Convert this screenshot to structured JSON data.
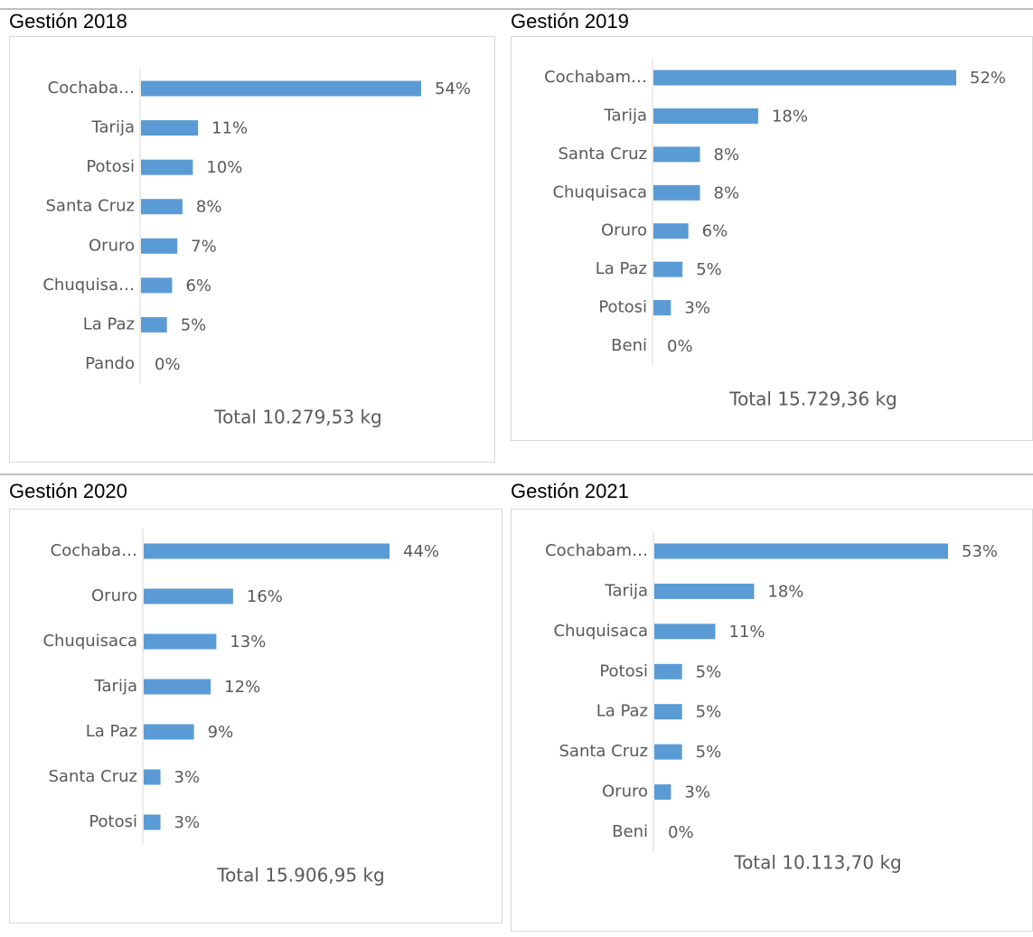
{
  "chart_data": [
    {
      "type": "bar",
      "orientation": "horizontal",
      "title": "Gestión 2018",
      "color": "#5b9bd5",
      "categories": [
        "Cochaba…",
        "Tarija",
        "Potosi",
        "Santa Cruz",
        "Oruro",
        "Chuquisa…",
        "La Paz",
        "Pando"
      ],
      "values": [
        54,
        11,
        10,
        8,
        7,
        6,
        5,
        0
      ],
      "value_labels": [
        "54%",
        "11%",
        "10%",
        "8%",
        "7%",
        "6%",
        "5%",
        "0%"
      ],
      "annotation": "Total 10.279,53 kg"
    },
    {
      "type": "bar",
      "orientation": "horizontal",
      "title": "Gestión 2019",
      "color": "#5b9bd5",
      "categories": [
        "Cochabam…",
        "Tarija",
        "Santa Cruz",
        "Chuquisaca",
        "Oruro",
        "La Paz",
        "Potosi",
        "Beni"
      ],
      "values": [
        52,
        18,
        8,
        8,
        6,
        5,
        3,
        0
      ],
      "value_labels": [
        "52%",
        "18%",
        "8%",
        "8%",
        "6%",
        "5%",
        "3%",
        "0%"
      ],
      "annotation": "Total 15.729,36 kg"
    },
    {
      "type": "bar",
      "orientation": "horizontal",
      "title": "Gestión 2020",
      "color": "#5b9bd5",
      "categories": [
        "Cochaba…",
        "Oruro",
        "Chuquisaca",
        "Tarija",
        "La Paz",
        "Santa Cruz",
        "Potosi"
      ],
      "values": [
        44,
        16,
        13,
        12,
        9,
        3,
        3
      ],
      "value_labels": [
        "44%",
        "16%",
        "13%",
        "12%",
        "9%",
        "3%",
        "3%"
      ],
      "annotation": "Total 15.906,95 kg"
    },
    {
      "type": "bar",
      "orientation": "horizontal",
      "title": "Gestión 2021",
      "color": "#5b9bd5",
      "categories": [
        "Cochabam…",
        "Tarija",
        "Chuquisaca",
        "Potosi",
        "La Paz",
        "Santa Cruz",
        "Oruro",
        "Beni"
      ],
      "values": [
        53,
        18,
        11,
        5,
        5,
        5,
        3,
        0
      ],
      "value_labels": [
        "53%",
        "18%",
        "11%",
        "5%",
        "5%",
        "5%",
        "3%",
        "0%"
      ],
      "annotation": "Total 10.113,70 kg"
    }
  ]
}
